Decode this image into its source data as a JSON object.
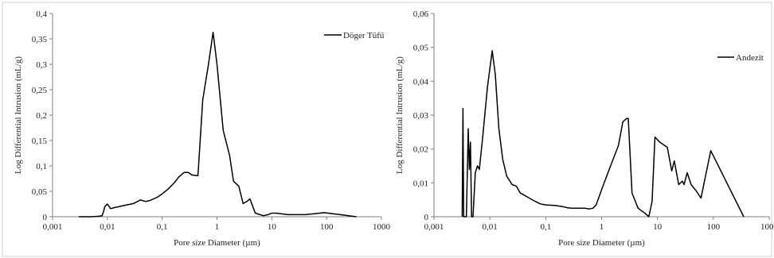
{
  "chart_data": [
    {
      "type": "line",
      "xlabel": "Pore size  Diameter  (µm)",
      "ylabel": "Log  Differential  Intrusion  (mL/g)",
      "xscale": "log",
      "xlim": [
        0.001,
        1000
      ],
      "ylim": [
        0,
        0.4
      ],
      "xticks": [
        "0,001",
        "0,01",
        "0,1",
        "1",
        "10",
        "100",
        "1000"
      ],
      "yticks": [
        "0",
        "0,05",
        "0,1",
        "0,15",
        "0,2",
        "0,25",
        "0,3",
        "0,35",
        "0,4"
      ],
      "grid": false,
      "legend": "top-right",
      "series": [
        {
          "name": "Döger Tüfü",
          "color": "#000000",
          "x": [
            0.003,
            0.005,
            0.007,
            0.008,
            0.0085,
            0.009,
            0.01,
            0.0115,
            0.0135,
            0.02,
            0.03,
            0.04,
            0.05,
            0.06,
            0.08,
            0.1,
            0.13,
            0.17,
            0.2,
            0.25,
            0.3,
            0.35,
            0.45,
            0.55,
            0.7,
            0.85,
            1.0,
            1.3,
            1.7,
            2.0,
            2.5,
            3.0,
            3.5,
            4.0,
            5.0,
            7.0,
            8.5,
            10,
            12,
            20,
            40,
            60,
            90,
            150,
            350
          ],
          "y": [
            0.0,
            0.0,
            0.001,
            0.002,
            0.01,
            0.02,
            0.025,
            0.016,
            0.018,
            0.022,
            0.026,
            0.033,
            0.03,
            0.032,
            0.038,
            0.045,
            0.055,
            0.068,
            0.078,
            0.087,
            0.087,
            0.082,
            0.081,
            0.23,
            0.3,
            0.363,
            0.3,
            0.17,
            0.12,
            0.07,
            0.06,
            0.026,
            0.03,
            0.035,
            0.007,
            0.002,
            0.004,
            0.007,
            0.007,
            0.004,
            0.004,
            0.006,
            0.008,
            0.005,
            0.0
          ]
        }
      ]
    },
    {
      "type": "line",
      "xlabel": "Pore size  Diameter  (µm)",
      "ylabel": "Log  Differential  Intrusion  (mL/g)",
      "xscale": "log",
      "xlim": [
        0.001,
        1000
      ],
      "ylim": [
        0,
        0.06
      ],
      "xticks": [
        "0,001",
        "0,01",
        "0,1",
        "1",
        "10",
        "100",
        "1000"
      ],
      "yticks": [
        "0",
        "0,01",
        "0,02",
        "0,03",
        "0,04",
        "0,05",
        "0,06"
      ],
      "grid": false,
      "legend": "top-right",
      "series": [
        {
          "name": "Andezit",
          "color": "#000000",
          "x": [
            0.0032,
            0.0033,
            0.0034,
            0.0038,
            0.0041,
            0.0043,
            0.0045,
            0.0047,
            0.005,
            0.0055,
            0.006,
            0.0065,
            0.0075,
            0.009,
            0.011,
            0.0125,
            0.0145,
            0.017,
            0.02,
            0.025,
            0.03,
            0.035,
            0.04,
            0.06,
            0.08,
            0.1,
            0.15,
            0.2,
            0.25,
            0.3,
            0.4,
            0.5,
            0.6,
            0.7,
            0.8,
            1.0,
            1.3,
            2.0,
            2.4,
            2.8,
            3.0,
            3.5,
            4.5,
            6.0,
            7.0,
            8.0,
            9.0,
            11,
            15,
            18,
            20,
            24,
            28,
            30,
            34,
            40,
            50,
            60,
            90,
            350
          ],
          "y": [
            0.0,
            0.032,
            0.0,
            0.0,
            0.026,
            0.014,
            0.022,
            0.0,
            0.0,
            0.013,
            0.015,
            0.014,
            0.024,
            0.038,
            0.049,
            0.042,
            0.026,
            0.017,
            0.012,
            0.0095,
            0.009,
            0.007,
            0.0065,
            0.0048,
            0.0038,
            0.0035,
            0.0033,
            0.003,
            0.0026,
            0.0025,
            0.0025,
            0.0025,
            0.0023,
            0.0025,
            0.0035,
            0.008,
            0.013,
            0.021,
            0.028,
            0.029,
            0.029,
            0.007,
            0.0025,
            0.001,
            0.0,
            0.0045,
            0.0235,
            0.022,
            0.0205,
            0.0135,
            0.0165,
            0.0095,
            0.0105,
            0.0095,
            0.013,
            0.0095,
            0.0075,
            0.0055,
            0.0195,
            0.0
          ]
        }
      ]
    }
  ]
}
